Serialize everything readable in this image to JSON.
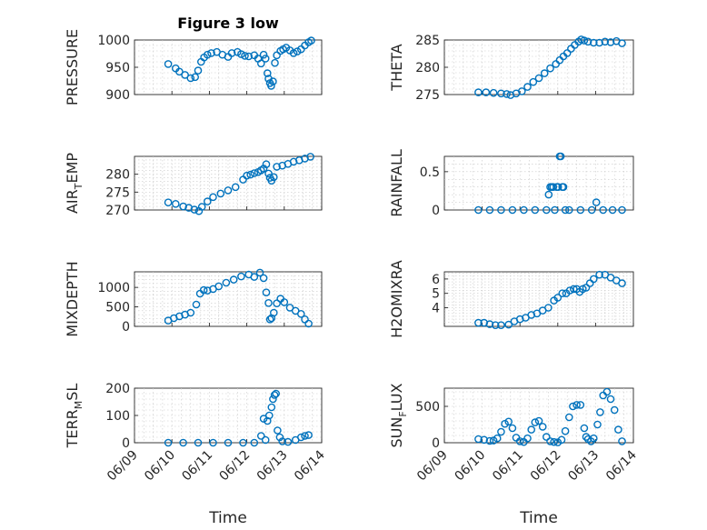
{
  "title": "Figure 3 low",
  "colors": {
    "marker": "#0072BD",
    "axis": "#262626",
    "grid": "#c8c8c8"
  },
  "xlabel": "Time",
  "x_ticks": [
    "06/09",
    "06/10",
    "06/11",
    "06/12",
    "06/13",
    "06/14"
  ],
  "chart_data": [
    {
      "type": "scatter",
      "name": "pressure",
      "ylabel": "PRESSURE",
      "ylabel_sub": "",
      "ylim": [
        900,
        1000
      ],
      "yticks": [
        900,
        950,
        1000
      ],
      "x": [
        9.9,
        10.1,
        10.2,
        10.35,
        10.5,
        10.62,
        10.7,
        10.78,
        10.86,
        10.95,
        11.05,
        11.2,
        11.35,
        11.5,
        11.6,
        11.75,
        11.85,
        11.95,
        12.05,
        12.2,
        12.3,
        12.38,
        12.45,
        12.5,
        12.55,
        12.58,
        12.62,
        12.65,
        12.7,
        12.75,
        12.8,
        12.9,
        12.97,
        13.05,
        13.15,
        13.25,
        13.35,
        13.45,
        13.55,
        13.65,
        13.72
      ],
      "y": [
        956,
        948,
        942,
        936,
        930,
        932,
        944,
        960,
        968,
        973,
        976,
        978,
        973,
        969,
        976,
        978,
        974,
        971,
        970,
        972,
        966,
        957,
        973,
        966,
        939,
        929,
        921,
        916,
        924,
        958,
        972,
        980,
        983,
        986,
        981,
        976,
        979,
        983,
        990,
        996,
        999
      ]
    },
    {
      "type": "scatter",
      "name": "theta",
      "ylabel": "THETA",
      "ylabel_sub": "",
      "ylim": [
        275,
        285
      ],
      "yticks": [
        275,
        280,
        285
      ],
      "x": [
        9.9,
        10.1,
        10.3,
        10.5,
        10.65,
        10.75,
        10.9,
        11.05,
        11.2,
        11.35,
        11.5,
        11.65,
        11.8,
        11.95,
        12.05,
        12.15,
        12.25,
        12.35,
        12.45,
        12.55,
        12.62,
        12.7,
        12.8,
        12.95,
        13.1,
        13.25,
        13.4,
        13.55,
        13.7
      ],
      "y": [
        275.4,
        275.4,
        275.3,
        275.2,
        275.1,
        274.9,
        275.2,
        275.6,
        276.4,
        277.3,
        278.0,
        278.9,
        279.8,
        280.6,
        281.3,
        282.0,
        282.6,
        283.4,
        284.1,
        284.7,
        285.1,
        284.9,
        284.7,
        284.5,
        284.5,
        284.7,
        284.6,
        284.8,
        284.4
      ]
    },
    {
      "type": "scatter",
      "name": "air_temp",
      "ylabel": "AIR",
      "ylabel_sub": "T",
      "ylabel_tail": "EMP",
      "ylim": [
        270,
        285
      ],
      "yticks": [
        270,
        275,
        280
      ],
      "x": [
        9.9,
        10.1,
        10.3,
        10.45,
        10.6,
        10.72,
        10.8,
        10.95,
        11.1,
        11.3,
        11.5,
        11.7,
        11.9,
        12.0,
        12.1,
        12.2,
        12.3,
        12.38,
        12.45,
        12.52,
        12.58,
        12.62,
        12.66,
        12.72,
        12.8,
        12.95,
        13.1,
        13.25,
        13.4,
        13.55,
        13.7
      ],
      "y": [
        272.1,
        271.7,
        271.0,
        270.6,
        270.1,
        269.7,
        270.9,
        272.4,
        273.6,
        274.6,
        275.5,
        276.4,
        278.5,
        279.6,
        279.9,
        280.3,
        280.6,
        281.1,
        281.6,
        282.8,
        280.2,
        279.0,
        278.2,
        279.2,
        282.1,
        282.4,
        282.9,
        283.5,
        283.9,
        284.4,
        284.9
      ]
    },
    {
      "type": "scatter",
      "name": "rainfall",
      "ylabel": "RAINFALL",
      "ylabel_sub": "",
      "ylim": [
        0,
        0.7
      ],
      "yticks": [
        0,
        0.5
      ],
      "x": [
        9.9,
        10.2,
        10.5,
        10.8,
        11.1,
        11.4,
        11.7,
        11.76,
        11.8,
        11.84,
        11.88,
        11.92,
        11.97,
        12.01,
        12.05,
        12.08,
        12.12,
        12.15,
        12.2,
        12.3,
        12.6,
        12.9,
        13.02,
        13.2,
        13.45,
        13.7
      ],
      "y": [
        0,
        0,
        0,
        0,
        0,
        0,
        0,
        0.2,
        0.3,
        0.3,
        0.3,
        0,
        0.3,
        0.3,
        0.7,
        0.7,
        0.3,
        0.3,
        0,
        0,
        0,
        0,
        0.1,
        0,
        0,
        0
      ]
    },
    {
      "type": "scatter",
      "name": "mixdepth",
      "ylabel": "MIXDEPTH",
      "ylabel_sub": "",
      "ylim": [
        0,
        1400
      ],
      "yticks": [
        0,
        500,
        1000
      ],
      "x": [
        9.9,
        10.05,
        10.2,
        10.35,
        10.5,
        10.65,
        10.75,
        10.85,
        10.95,
        11.1,
        11.25,
        11.45,
        11.65,
        11.85,
        12.05,
        12.2,
        12.35,
        12.45,
        12.52,
        12.58,
        12.62,
        12.66,
        12.72,
        12.8,
        12.9,
        13.0,
        13.15,
        13.3,
        13.45,
        13.55,
        13.65
      ],
      "y": [
        150,
        210,
        260,
        300,
        350,
        560,
        840,
        930,
        920,
        960,
        1030,
        1120,
        1200,
        1280,
        1330,
        1270,
        1380,
        1240,
        870,
        600,
        180,
        210,
        350,
        590,
        710,
        620,
        480,
        400,
        320,
        180,
        70
      ]
    },
    {
      "type": "scatter",
      "name": "h2omixra",
      "ylabel": "H2OMIXRA",
      "ylabel_sub": "",
      "ylim": [
        2.7,
        6.5
      ],
      "yticks": [
        4,
        5,
        6
      ],
      "x": [
        9.9,
        10.05,
        10.2,
        10.35,
        10.5,
        10.7,
        10.85,
        11.0,
        11.15,
        11.3,
        11.45,
        11.6,
        11.75,
        11.9,
        12.0,
        12.12,
        12.22,
        12.32,
        12.42,
        12.5,
        12.58,
        12.66,
        12.75,
        12.85,
        12.95,
        13.1,
        13.25,
        13.4,
        13.55,
        13.7
      ],
      "y": [
        2.95,
        2.95,
        2.85,
        2.78,
        2.78,
        2.82,
        3.05,
        3.2,
        3.3,
        3.5,
        3.6,
        3.8,
        4.0,
        4.5,
        4.7,
        5.0,
        5.0,
        5.2,
        5.3,
        5.3,
        5.1,
        5.3,
        5.4,
        5.7,
        6.0,
        6.3,
        6.3,
        6.1,
        5.9,
        5.7
      ]
    },
    {
      "type": "scatter",
      "name": "terr_msl",
      "ylabel": "TERR",
      "ylabel_sub": "M",
      "ylabel_tail": "SL",
      "ylim": [
        0,
        200
      ],
      "yticks": [
        0,
        100,
        200
      ],
      "x": [
        9.9,
        10.3,
        10.7,
        11.1,
        11.5,
        11.9,
        12.2,
        12.38,
        12.45,
        12.5,
        12.55,
        12.6,
        12.66,
        12.7,
        12.74,
        12.78,
        12.82,
        12.88,
        12.95,
        13.1,
        13.3,
        13.45,
        13.55,
        13.65
      ],
      "y": [
        0,
        0,
        0,
        0,
        0,
        0,
        0,
        25,
        88,
        10,
        80,
        100,
        130,
        160,
        175,
        180,
        45,
        20,
        5,
        3,
        10,
        20,
        25,
        28
      ]
    },
    {
      "type": "scatter",
      "name": "sun_flux",
      "ylabel": "SUN",
      "ylabel_sub": "F",
      "ylabel_tail": "LUX",
      "ylim": [
        0,
        750
      ],
      "yticks": [
        0,
        500
      ],
      "x": [
        9.9,
        10.05,
        10.2,
        10.3,
        10.4,
        10.5,
        10.6,
        10.7,
        10.8,
        10.9,
        11.0,
        11.1,
        11.2,
        11.3,
        11.4,
        11.5,
        11.6,
        11.7,
        11.8,
        11.9,
        12.0,
        12.1,
        12.2,
        12.3,
        12.4,
        12.5,
        12.6,
        12.7,
        12.75,
        12.8,
        12.88,
        12.95,
        13.05,
        13.12,
        13.2,
        13.3,
        13.4,
        13.5,
        13.6,
        13.7
      ],
      "y": [
        50,
        40,
        25,
        30,
        60,
        150,
        260,
        290,
        200,
        70,
        20,
        10,
        60,
        180,
        280,
        300,
        220,
        80,
        20,
        10,
        5,
        40,
        160,
        350,
        500,
        520,
        520,
        200,
        80,
        50,
        20,
        60,
        250,
        420,
        650,
        700,
        600,
        450,
        180,
        20
      ]
    }
  ]
}
